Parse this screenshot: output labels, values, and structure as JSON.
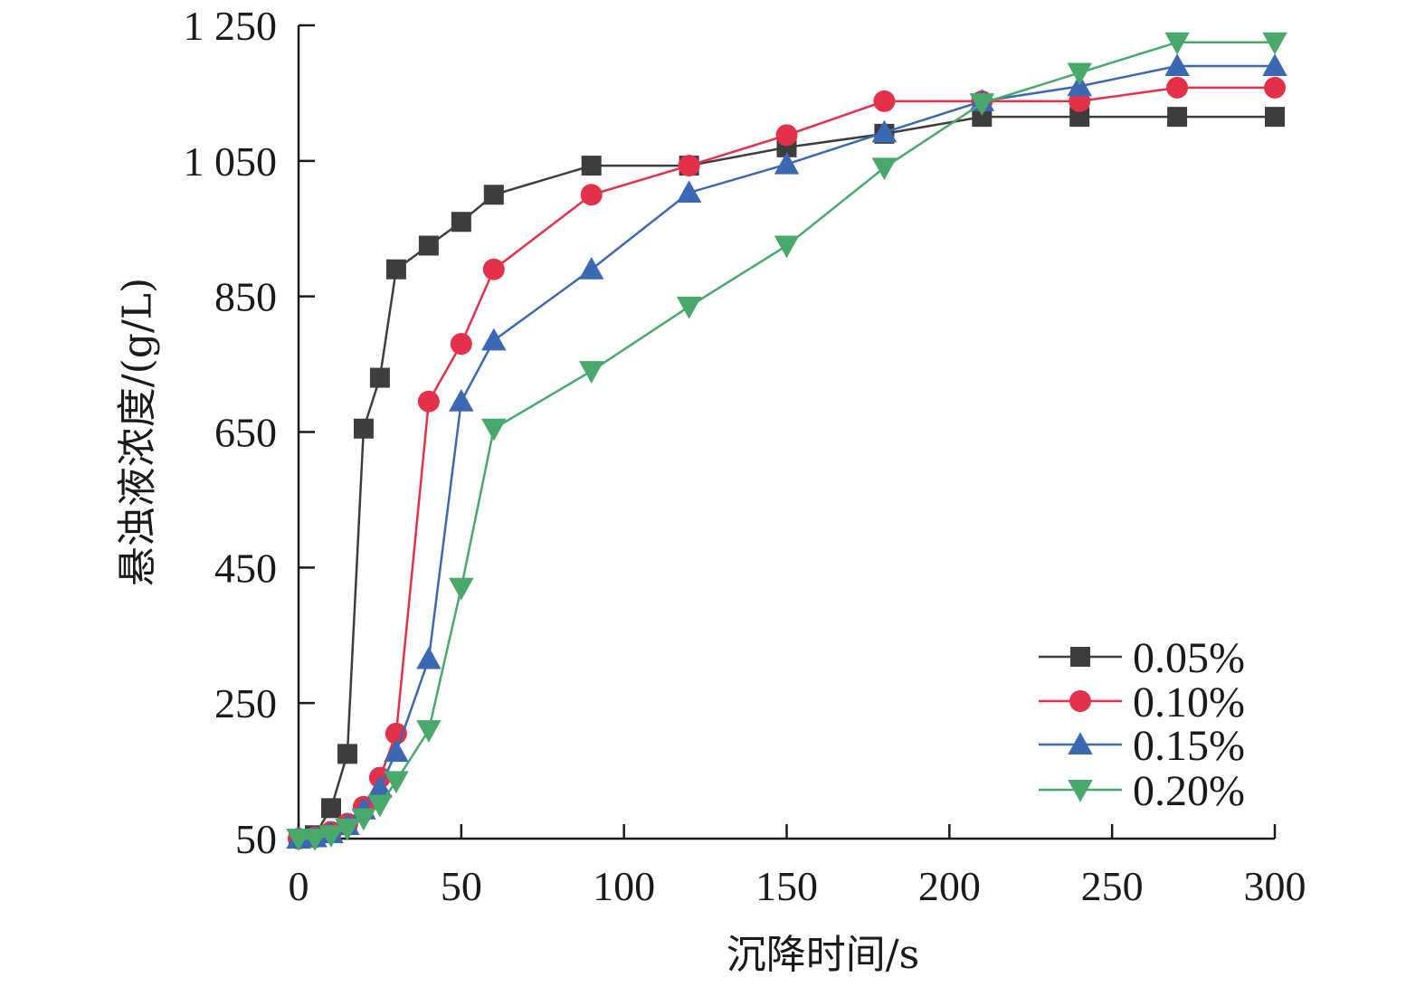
{
  "chart_data": {
    "type": "line",
    "title": "",
    "xlabel": "沉降时间/s",
    "ylabel": "悬浊液浓度/(g/L)",
    "xlim": [
      0,
      300
    ],
    "ylim": [
      50,
      1250
    ],
    "xticks": [
      0,
      50,
      100,
      150,
      200,
      250,
      300
    ],
    "yticks": [
      50,
      250,
      450,
      650,
      850,
      1050,
      1250
    ],
    "xtick_labels": [
      "0",
      "50",
      "100",
      "150",
      "200",
      "250",
      "300"
    ],
    "ytick_labels": [
      "50",
      "250",
      "450",
      "650",
      "850",
      "1 050",
      "1 250"
    ],
    "grid": false,
    "legend_position": "bottom-right",
    "series": [
      {
        "name": "0.05%",
        "color": "#3d3d3f",
        "marker": "square",
        "x": [
          0,
          5,
          10,
          15,
          20,
          25,
          30,
          40,
          50,
          60,
          90,
          120,
          150,
          180,
          210,
          240,
          270,
          300
        ],
        "y": [
          50,
          55,
          95,
          175,
          655,
          730,
          890,
          925,
          960,
          1000,
          1043,
          1043,
          1070,
          1090,
          1115,
          1115,
          1115,
          1115
        ]
      },
      {
        "name": "0.10%",
        "color": "#e5304a",
        "marker": "circle",
        "x": [
          0,
          5,
          10,
          15,
          20,
          25,
          30,
          40,
          50,
          60,
          90,
          120,
          150,
          180,
          210,
          240,
          270,
          300
        ],
        "y": [
          50,
          52,
          60,
          72,
          97,
          140,
          205,
          695,
          780,
          890,
          1000,
          1043,
          1088,
          1138,
          1138,
          1138,
          1158,
          1158
        ]
      },
      {
        "name": "0.15%",
        "color": "#3c68b3",
        "marker": "triangle-up",
        "x": [
          0,
          5,
          10,
          15,
          20,
          25,
          30,
          40,
          50,
          60,
          90,
          120,
          150,
          180,
          210,
          240,
          270,
          300
        ],
        "y": [
          50,
          52,
          58,
          70,
          93,
          125,
          178,
          315,
          695,
          785,
          890,
          1003,
          1045,
          1092,
          1138,
          1160,
          1190,
          1190
        ]
      },
      {
        "name": "0.20%",
        "color": "#49a86b",
        "marker": "triangle-down",
        "x": [
          0,
          5,
          10,
          15,
          20,
          25,
          30,
          40,
          50,
          60,
          90,
          120,
          150,
          180,
          210,
          240,
          270,
          300
        ],
        "y": [
          50,
          50,
          55,
          65,
          80,
          100,
          135,
          210,
          420,
          655,
          740,
          835,
          925,
          1040,
          1135,
          1180,
          1225,
          1225
        ]
      }
    ]
  }
}
